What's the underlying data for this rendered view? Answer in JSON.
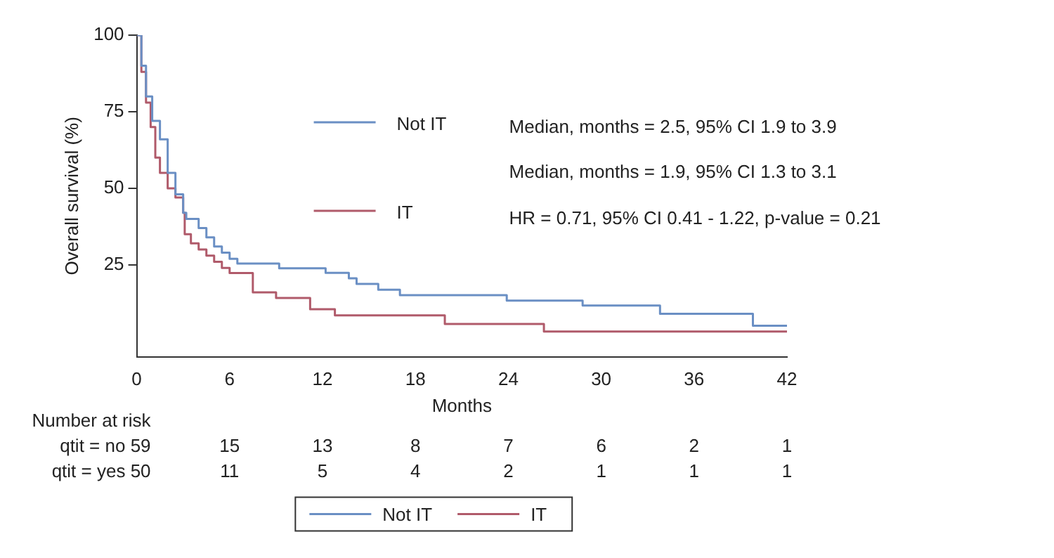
{
  "chart_data": {
    "type": "step",
    "xlabel": "Months",
    "ylabel": "Overall survival (%)",
    "xlim": [
      0,
      42
    ],
    "xticks": [
      0,
      6,
      12,
      18,
      24,
      30,
      36,
      42
    ],
    "ylim": [
      -5,
      100
    ],
    "yticks": [
      25,
      50,
      75,
      100
    ],
    "grid": false,
    "legend": "top",
    "marker": "none",
    "line_style": "solid",
    "series": [
      {
        "name": "Not IT",
        "color": "#6a8fc4",
        "x": [
          0,
          0.3,
          0.6,
          1,
          1.5,
          2,
          2.5,
          3,
          3.2,
          4,
          4.5,
          5,
          5.5,
          6,
          6.5,
          9.2,
          12.2,
          12.5,
          13.7,
          14.2,
          15.6,
          17,
          23.9,
          28.8,
          33.8,
          39.8,
          42
        ],
        "values": [
          100,
          90,
          80,
          72,
          66,
          55,
          48,
          42,
          40,
          37,
          34,
          31,
          29,
          27,
          25.4,
          23.9,
          22.4,
          22.4,
          20.6,
          18.8,
          16.9,
          15.1,
          13.3,
          11.7,
          9,
          5.1,
          5.1
        ]
      },
      {
        "name": "IT",
        "color": "#b05a6a",
        "x": [
          0,
          0.3,
          0.6,
          0.9,
          1.2,
          1.5,
          2,
          2.5,
          3,
          3.1,
          3.5,
          4,
          4.5,
          5,
          5.5,
          6,
          7.5,
          9,
          11.2,
          12.8,
          19.9,
          26.3,
          42
        ],
        "values": [
          100,
          88,
          78,
          70,
          60,
          55,
          50,
          47,
          42,
          35,
          32,
          30,
          28,
          26,
          24,
          22.3,
          16,
          14.2,
          10.5,
          8.5,
          5.7,
          3.2,
          3.2
        ]
      }
    ],
    "annotations": [
      "Median, months = 2.5, 95% CI 1.9 to 3.9",
      "Median, months = 1.9, 95% CI 1.3 to 3.1",
      "HR = 0.71, 95% CI 0.41 - 1.22, p-value = 0.21",
      "Number at risk",
      "qtit = no 59",
      "15",
      "13",
      "8",
      "7",
      "6",
      "2",
      "1",
      "qtit = yes 50",
      "11",
      "5",
      "4",
      "2",
      "1",
      "1",
      "1"
    ]
  }
}
